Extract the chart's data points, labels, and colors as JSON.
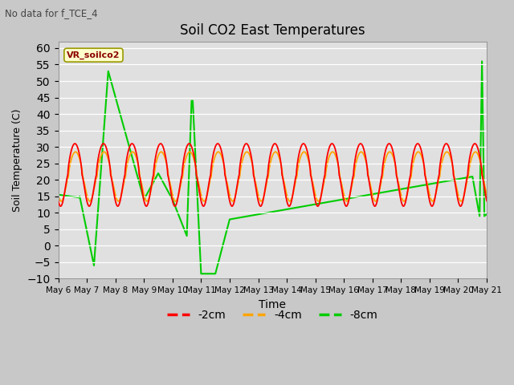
{
  "title": "Soil CO2 East Temperatures",
  "subtitle": "No data for f_TCE_4",
  "xlabel": "Time",
  "ylabel": "Soil Temperature (C)",
  "ylim": [
    -10,
    62
  ],
  "yticks": [
    -10,
    -5,
    0,
    5,
    10,
    15,
    20,
    25,
    30,
    35,
    40,
    45,
    50,
    55,
    60
  ],
  "legend_label": "VR_soilco2",
  "line_labels": [
    "-2cm",
    "-4cm",
    "-8cm"
  ],
  "line_colors": [
    "#ff0000",
    "#ffa500",
    "#00cc00"
  ],
  "fig_bg": "#c8c8c8",
  "plot_bg": "#e0e0e0",
  "grid_color": "#ffffff",
  "start_day": 6,
  "end_day": 21
}
